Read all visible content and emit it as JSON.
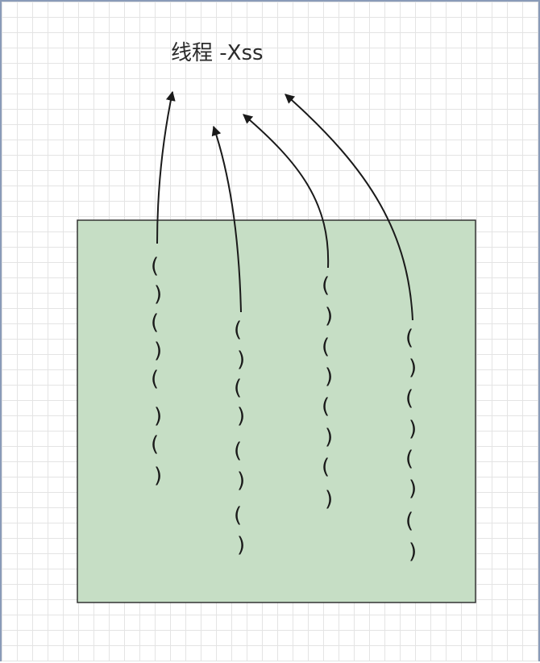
{
  "diagram": {
    "title": "线程 -Xss"
  }
}
